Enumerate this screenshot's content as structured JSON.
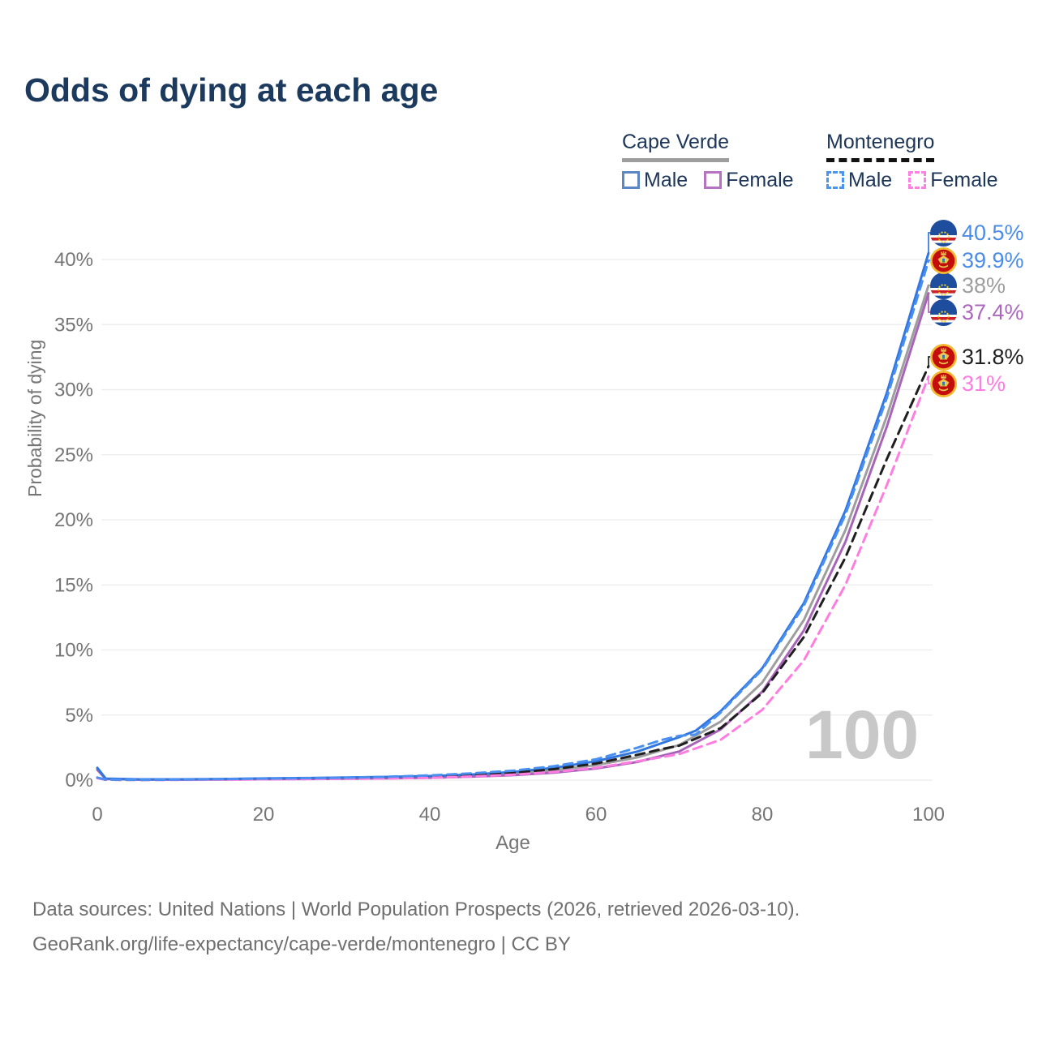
{
  "title": "Odds of dying at each age",
  "watermark": "100",
  "legend": {
    "groups": [
      {
        "name": "Cape Verde",
        "line_style": "solid",
        "underline_color": "#9e9e9e",
        "items": [
          {
            "label": "Male",
            "color": "#5b87c5"
          },
          {
            "label": "Female",
            "color": "#b573c2"
          }
        ]
      },
      {
        "name": "Montenegro",
        "line_style": "dashed",
        "underline_color": "#121212",
        "items": [
          {
            "label": "Male",
            "color": "#4a94f2"
          },
          {
            "label": "Female",
            "color": "#ff80e5"
          }
        ]
      }
    ]
  },
  "footer": {
    "line1": "Data sources: United Nations | World Population Prospects (2026, retrieved 2026-03-10).",
    "line2": "GeoRank.org/life-expectancy/cape-verde/montenegro | CC BY"
  },
  "chart_data": {
    "type": "line",
    "title": "Odds of dying at each age",
    "xlabel": "Age",
    "ylabel": "Probability of dying",
    "xlim": [
      0,
      100
    ],
    "ylim": [
      0,
      42.8
    ],
    "grid": "horizontal",
    "x_ticks": [
      0,
      20,
      40,
      60,
      80,
      100
    ],
    "y_ticks": [
      {
        "value": 0,
        "label": "0%"
      },
      {
        "value": 5,
        "label": "5%"
      },
      {
        "value": 10,
        "label": "10%"
      },
      {
        "value": 15,
        "label": "15%"
      },
      {
        "value": 20,
        "label": "20%"
      },
      {
        "value": 25,
        "label": "25%"
      },
      {
        "value": 30,
        "label": "30%"
      },
      {
        "value": 35,
        "label": "35%"
      },
      {
        "value": 40,
        "label": "40%"
      }
    ],
    "series": [
      {
        "id": "cv_total",
        "name": "Cape Verde Both sexes",
        "country": "Cape Verde",
        "color": "#9e9e9e",
        "dash": false,
        "end_label": "38%",
        "end_label_color": "#9e9e9e",
        "flag": "cape-verde",
        "points": [
          [
            0,
            0.88
          ],
          [
            1,
            0.1
          ],
          [
            5,
            0.05
          ],
          [
            10,
            0.05
          ],
          [
            15,
            0.07
          ],
          [
            20,
            0.1
          ],
          [
            25,
            0.12
          ],
          [
            30,
            0.15
          ],
          [
            35,
            0.19
          ],
          [
            40,
            0.24
          ],
          [
            45,
            0.34
          ],
          [
            50,
            0.5
          ],
          [
            55,
            0.76
          ],
          [
            60,
            1.15
          ],
          [
            65,
            1.75
          ],
          [
            70,
            2.7
          ],
          [
            75,
            4.5
          ],
          [
            80,
            7.5
          ],
          [
            85,
            12.3
          ],
          [
            90,
            19.2
          ],
          [
            95,
            28.0
          ],
          [
            100,
            38.0
          ]
        ]
      },
      {
        "id": "cv_female",
        "name": "Cape Verde Female",
        "country": "Cape Verde",
        "color": "#a864b8",
        "dash": false,
        "end_label": "37.4%",
        "end_label_color": "#ad66bd",
        "flag": "cape-verde",
        "points": [
          [
            0,
            0.8
          ],
          [
            1,
            0.09
          ],
          [
            5,
            0.04
          ],
          [
            10,
            0.04
          ],
          [
            15,
            0.05
          ],
          [
            20,
            0.07
          ],
          [
            25,
            0.09
          ],
          [
            30,
            0.11
          ],
          [
            35,
            0.14
          ],
          [
            40,
            0.18
          ],
          [
            45,
            0.26
          ],
          [
            50,
            0.38
          ],
          [
            55,
            0.58
          ],
          [
            60,
            0.9
          ],
          [
            65,
            1.4
          ],
          [
            70,
            2.2
          ],
          [
            75,
            3.9
          ],
          [
            80,
            6.8
          ],
          [
            85,
            11.5
          ],
          [
            90,
            18.3
          ],
          [
            95,
            27.2
          ],
          [
            100,
            37.4
          ]
        ]
      },
      {
        "id": "cv_male",
        "name": "Cape Verde Male",
        "country": "Cape Verde",
        "color": "#3276e0",
        "dash": false,
        "end_label": "40.5%",
        "end_label_color": "#4a8ce8",
        "flag": "cape-verde",
        "points": [
          [
            0,
            0.95
          ],
          [
            1,
            0.12
          ],
          [
            5,
            0.06
          ],
          [
            10,
            0.06
          ],
          [
            15,
            0.09
          ],
          [
            20,
            0.13
          ],
          [
            25,
            0.16
          ],
          [
            30,
            0.2
          ],
          [
            35,
            0.25
          ],
          [
            40,
            0.31
          ],
          [
            45,
            0.43
          ],
          [
            50,
            0.62
          ],
          [
            55,
            0.95
          ],
          [
            60,
            1.45
          ],
          [
            65,
            2.2
          ],
          [
            70,
            3.3
          ],
          [
            72,
            3.8
          ],
          [
            75,
            5.3
          ],
          [
            80,
            8.6
          ],
          [
            85,
            13.6
          ],
          [
            90,
            20.7
          ],
          [
            95,
            29.8
          ],
          [
            100,
            40.5
          ]
        ]
      },
      {
        "id": "mn_total",
        "name": "Montenegro Both sexes",
        "country": "Montenegro",
        "color": "#1f1f1f",
        "dash": true,
        "end_label": "31.8%",
        "end_label_color": "#1f1f1f",
        "flag": "montenegro",
        "points": [
          [
            0,
            0.17
          ],
          [
            1,
            0.03
          ],
          [
            5,
            0.02
          ],
          [
            10,
            0.03
          ],
          [
            15,
            0.06
          ],
          [
            20,
            0.09
          ],
          [
            25,
            0.11
          ],
          [
            30,
            0.14
          ],
          [
            35,
            0.19
          ],
          [
            40,
            0.27
          ],
          [
            45,
            0.4
          ],
          [
            50,
            0.56
          ],
          [
            55,
            0.85
          ],
          [
            60,
            1.28
          ],
          [
            65,
            1.95
          ],
          [
            68,
            2.4
          ],
          [
            70,
            2.65
          ],
          [
            75,
            4.0
          ],
          [
            80,
            6.7
          ],
          [
            85,
            11.0
          ],
          [
            90,
            17.1
          ],
          [
            95,
            24.7
          ],
          [
            100,
            31.8
          ]
        ]
      },
      {
        "id": "mn_female",
        "name": "Montenegro Female",
        "country": "Montenegro",
        "color": "#ff7ce0",
        "dash": true,
        "end_label": "31%",
        "end_label_color": "#ff7ce2",
        "flag": "montenegro",
        "points": [
          [
            0,
            0.15
          ],
          [
            1,
            0.03
          ],
          [
            5,
            0.02
          ],
          [
            10,
            0.02
          ],
          [
            15,
            0.04
          ],
          [
            20,
            0.06
          ],
          [
            25,
            0.08
          ],
          [
            30,
            0.1
          ],
          [
            35,
            0.13
          ],
          [
            40,
            0.18
          ],
          [
            45,
            0.28
          ],
          [
            50,
            0.42
          ],
          [
            55,
            0.63
          ],
          [
            60,
            0.95
          ],
          [
            65,
            1.45
          ],
          [
            70,
            2.0
          ],
          [
            75,
            3.1
          ],
          [
            80,
            5.4
          ],
          [
            85,
            9.2
          ],
          [
            90,
            15.0
          ],
          [
            95,
            22.7
          ],
          [
            100,
            31.0
          ]
        ]
      },
      {
        "id": "mn_male",
        "name": "Montenegro Male",
        "country": "Montenegro",
        "color": "#4a90f0",
        "dash": true,
        "end_label": "39.9%",
        "end_label_color": "#4a8ce8",
        "flag": "montenegro",
        "points": [
          [
            0,
            0.2
          ],
          [
            1,
            0.04
          ],
          [
            5,
            0.03
          ],
          [
            10,
            0.04
          ],
          [
            15,
            0.08
          ],
          [
            20,
            0.12
          ],
          [
            25,
            0.15
          ],
          [
            30,
            0.19
          ],
          [
            35,
            0.26
          ],
          [
            40,
            0.36
          ],
          [
            45,
            0.52
          ],
          [
            50,
            0.72
          ],
          [
            55,
            1.08
          ],
          [
            60,
            1.6
          ],
          [
            65,
            2.5
          ],
          [
            68,
            3.1
          ],
          [
            70,
            3.4
          ],
          [
            72,
            3.5
          ],
          [
            75,
            5.2
          ],
          [
            80,
            8.5
          ],
          [
            85,
            13.4
          ],
          [
            90,
            20.4
          ],
          [
            95,
            29.4
          ],
          [
            100,
            39.9
          ]
        ]
      }
    ]
  }
}
